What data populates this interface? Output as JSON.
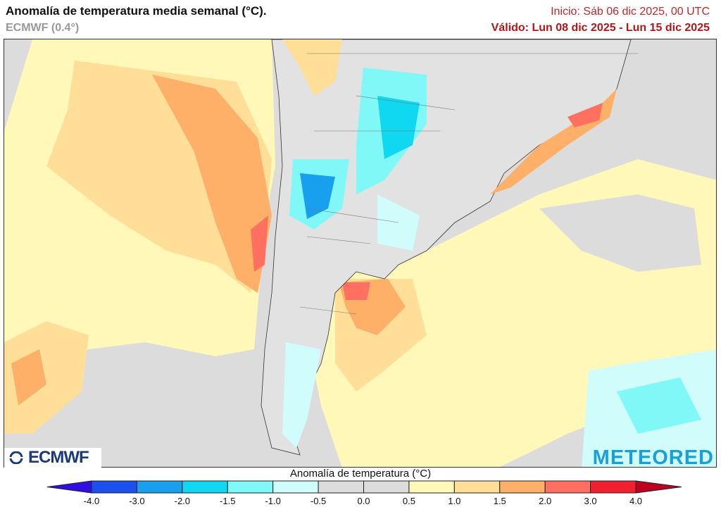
{
  "header": {
    "title": "Anomalía de temperatura media semanal (°C).",
    "model": "ECMWF (0.4°)",
    "init": "Inicio: Sáb 06 dic 2025, 00 UTC",
    "valid": "Válido: Lun 08 dic 2025 - Lun 15 dic 2025"
  },
  "logos": {
    "left": "ECMWF",
    "right": "METEORED"
  },
  "colorbar": {
    "title": "Anomalía de temperatura (°C)",
    "ticks": [
      "-4.0",
      "-3.0",
      "-2.0",
      "-1.5",
      "-1.0",
      "-0.5",
      "0.0",
      "0.5",
      "1.0",
      "1.5",
      "2.0",
      "3.0",
      "4.0"
    ],
    "colors": [
      "#1c50ee",
      "#18a0ee",
      "#10d8f0",
      "#80f8f8",
      "#d0fcfc",
      "#dcdcdc",
      "#dcdcdc",
      "#fff8b8",
      "#ffdf98",
      "#ffb068",
      "#ff7060",
      "#f02030"
    ],
    "under_color": "#3010e0",
    "over_color": "#c00020"
  }
}
